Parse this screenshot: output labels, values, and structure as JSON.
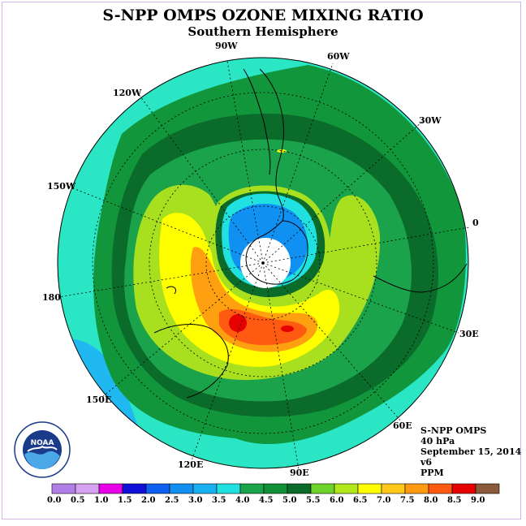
{
  "title": "S-NPP OMPS OZONE MIXING RATIO",
  "subtitle": "Southern Hemisphere",
  "longitude_labels": {
    "w90": "90W",
    "w60": "60W",
    "w30": "30W",
    "e0": "0",
    "e30": "30E",
    "e60": "60E",
    "e90": "90E",
    "e120": "120E",
    "e150": "150E",
    "d180": "180",
    "w150": "150W",
    "w120": "120W"
  },
  "info": {
    "instrument": "S-NPP OMPS",
    "level": "40 hPa",
    "date": "September 15, 2014",
    "version": "v6",
    "units": "PPM"
  },
  "logo_text": "NOAA",
  "colorbar": {
    "ticks": [
      "0.0",
      "0.5",
      "1.0",
      "1.5",
      "2.0",
      "2.5",
      "3.0",
      "3.5",
      "4.0",
      "4.5",
      "5.0",
      "5.5",
      "6.0",
      "6.5",
      "7.0",
      "7.5",
      "8.0",
      "8.5",
      "9.0"
    ],
    "colors": [
      "#b27fe8",
      "#d6a3f0",
      "#e800e8",
      "#1010d8",
      "#1060f0",
      "#1090f0",
      "#18b0f0",
      "#20e0e0",
      "#1aa34a",
      "#119035",
      "#0a6b2a",
      "#6fd22a",
      "#b0e81c",
      "#ffff00",
      "#ffc81a",
      "#ff9a12",
      "#ff5a12",
      "#e60000",
      "#8a5a3a"
    ]
  },
  "map_colors": {
    "outer_cyan": "#2ae6c4",
    "light_blue": "#20b8f0",
    "green_45": "#12963c",
    "green_40": "#1ba84a",
    "dark_green": "#0a6b2a",
    "yellow_green": "#a8e020",
    "yellow": "#ffff00",
    "orange": "#ffa010",
    "red": "#e60000",
    "pole_white": "#ffffff"
  }
}
